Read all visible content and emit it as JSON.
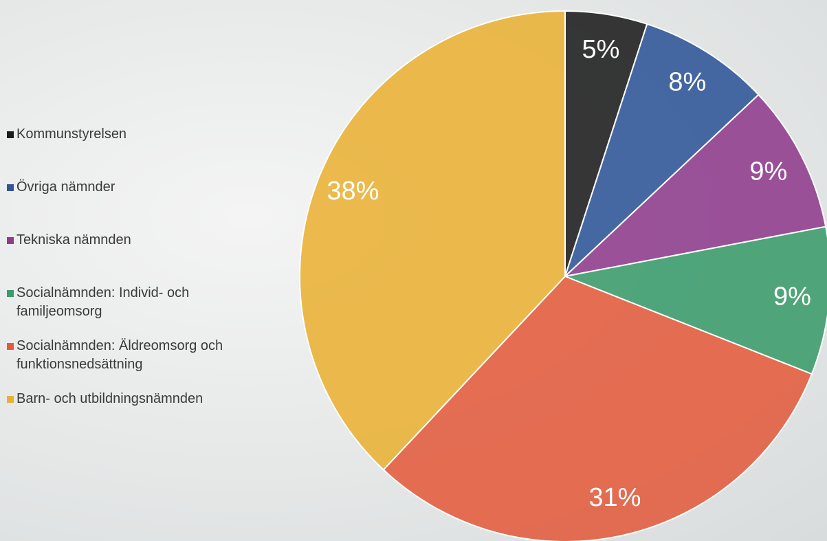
{
  "chart_data": {
    "type": "pie",
    "categories": [
      "Kommunstyrelsen",
      "Övriga nämnder",
      "Tekniska nämnden",
      "Socialnämnden: Individ- och familjeomsorg",
      "Socialnämnden: Äldreomsorg och funktionsnedsättning",
      "Barn- och utbildningsnämnden"
    ],
    "values": [
      5,
      8,
      9,
      9,
      31,
      38
    ],
    "value_labels": [
      "5%",
      "8%",
      "9%",
      "9%",
      "31%",
      "38%"
    ],
    "colors": [
      "#1c1c1c",
      "#2f5597",
      "#8e3b8c",
      "#3a9b6b",
      "#e35b3c",
      "#e9b134"
    ],
    "legend": "left"
  }
}
